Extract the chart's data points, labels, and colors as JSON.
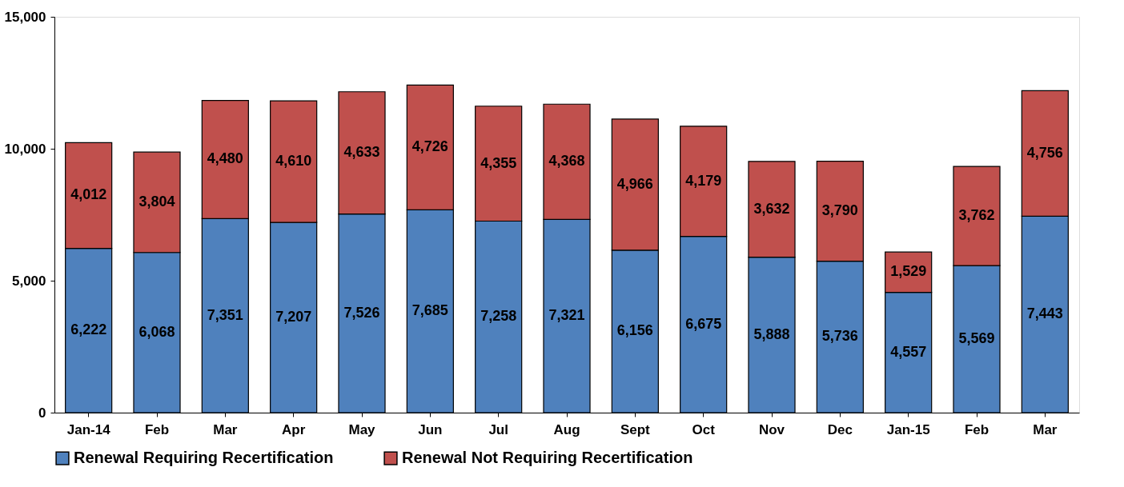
{
  "chart_data": {
    "type": "bar",
    "stacked": true,
    "categories": [
      "Jan-14",
      "Feb",
      "Mar",
      "Apr",
      "May",
      "Jun",
      "Jul",
      "Aug",
      "Sept",
      "Oct",
      "Nov",
      "Dec",
      "Jan-15",
      "Feb",
      "Mar"
    ],
    "series": [
      {
        "name": "Renewal Requiring Recertification",
        "color": "#4f81bd",
        "values": [
          6222,
          6068,
          7351,
          7207,
          7526,
          7685,
          7258,
          7321,
          6156,
          6675,
          5888,
          5736,
          4557,
          5569,
          7443
        ],
        "value_labels": [
          "6,222",
          "6,068",
          "7,351",
          "7,207",
          "7,526",
          "7,685",
          "7,258",
          "7,321",
          "6,156",
          "6,675",
          "5,888",
          "5,736",
          "4,557",
          "5,569",
          "7,443"
        ]
      },
      {
        "name": "Renewal Not Requiring Recertification",
        "color": "#c0504d",
        "values": [
          4012,
          3804,
          4480,
          4610,
          4633,
          4726,
          4355,
          4368,
          4966,
          4179,
          3632,
          3790,
          1529,
          3762,
          4756
        ],
        "value_labels": [
          "4,012",
          "3,804",
          "4,480",
          "4,610",
          "4,633",
          "4,726",
          "4,355",
          "4,368",
          "4,966",
          "4,179",
          "3,632",
          "3,790",
          "1,529",
          "3,762",
          "4,756"
        ]
      }
    ],
    "ylim": [
      0,
      15000
    ],
    "yticks": [
      0,
      {
        "value": 5000,
        "label": "5,000"
      },
      {
        "value": 10000,
        "label": "10,000"
      },
      {
        "value": 15000,
        "label": "15,000"
      }
    ],
    "grid": false,
    "legend": "bottom"
  }
}
